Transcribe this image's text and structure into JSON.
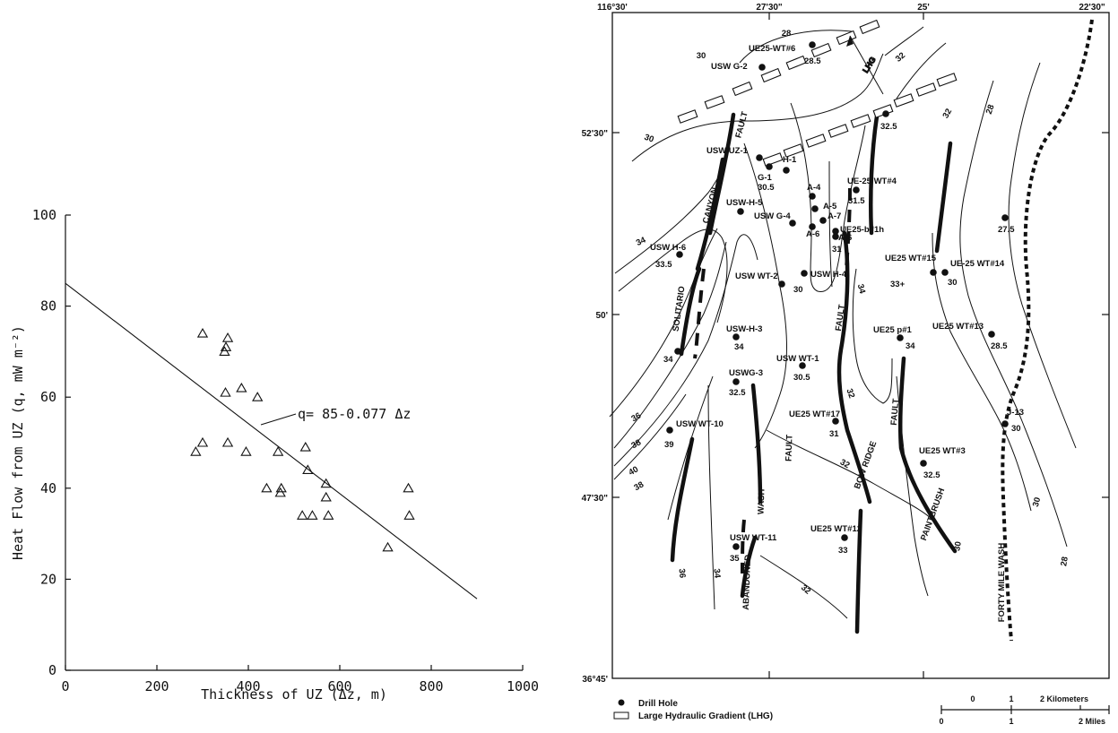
{
  "chart_data": [
    {
      "type": "scatter",
      "xlabel": "Thickness of UZ (Δz, m)",
      "ylabel": "Heat Flow from UZ (q, mW m⁻²)",
      "xlim": [
        0,
        1000
      ],
      "ylim": [
        0,
        100
      ],
      "xticks": [
        0,
        200,
        400,
        600,
        800,
        1000
      ],
      "yticks": [
        0,
        20,
        40,
        60,
        80,
        100
      ],
      "grid": false,
      "marker": "open-triangle",
      "points": [
        [
          300,
          74
        ],
        [
          355,
          73
        ],
        [
          348,
          70
        ],
        [
          351,
          71
        ],
        [
          350,
          61
        ],
        [
          385,
          62
        ],
        [
          420,
          60
        ],
        [
          285,
          48
        ],
        [
          300,
          50
        ],
        [
          355,
          50
        ],
        [
          395,
          48
        ],
        [
          465,
          48
        ],
        [
          440,
          40
        ],
        [
          470,
          39
        ],
        [
          472,
          40
        ],
        [
          525,
          49
        ],
        [
          530,
          44
        ],
        [
          570,
          41
        ],
        [
          570,
          38
        ],
        [
          518,
          34
        ],
        [
          540,
          34
        ],
        [
          575,
          34
        ],
        [
          705,
          27
        ],
        [
          750,
          40
        ],
        [
          752,
          34
        ]
      ],
      "fit": {
        "intercept": 85,
        "slope": -0.077,
        "x_range": [
          0,
          900
        ]
      },
      "annotation": "q= 85-0.077 Δz"
    },
    {
      "type": "map",
      "corner_labels": {
        "top_left": "116°30'",
        "top_mid": "27'30\"",
        "top_right_mid": "25'",
        "top_right": "22'30\"",
        "bottom_left": "36°45'"
      },
      "lat_labels": [
        "52'30\"",
        "50'",
        "47'30\""
      ],
      "legend": [
        {
          "symbol": "drill-hole",
          "label": "Drill Hole"
        },
        {
          "symbol": "lhg-rect",
          "label": "Large Hydraulic Gradient (LHG)"
        }
      ],
      "scale": {
        "km_ticks": [
          "0",
          "1",
          "2 Kilometers"
        ],
        "mi_ticks": [
          "0",
          "1",
          "2 Miles"
        ]
      },
      "features": [
        "FAULT",
        "CANYON",
        "SOLITARIO",
        "WASH",
        "FAULT",
        "ABANDONED",
        "FAULT",
        "BOW RIDGE",
        "FAULT",
        "PAINTBRUSH",
        "FORTY MILE WASH",
        "LHG"
      ],
      "drill_holes": [
        {
          "name": "UE25-WT#6",
          "value": "28.5"
        },
        {
          "name": "USW G-2",
          "value": ""
        },
        {
          "name": "USW UZ-1",
          "value": ""
        },
        {
          "name": "G-1",
          "value": "30.5"
        },
        {
          "name": "H-1",
          "value": ""
        },
        {
          "name": "USW-H-5",
          "value": ""
        },
        {
          "name": "USW G-4",
          "value": ""
        },
        {
          "name": "A-4",
          "value": ""
        },
        {
          "name": "A-5",
          "value": ""
        },
        {
          "name": "A-7",
          "value": ""
        },
        {
          "name": "A-6",
          "value": ""
        },
        {
          "name": "A-6",
          "value": ""
        },
        {
          "name": "UE25-b#1h",
          "value": "31"
        },
        {
          "name": "UE-25 WT#4",
          "value": "31.5"
        },
        {
          "name": "",
          "value": "32.5"
        },
        {
          "name": "USW H-6",
          "value": "33.5"
        },
        {
          "name": "USW WT-2",
          "value": "30"
        },
        {
          "name": "USW H-4",
          "value": ""
        },
        {
          "name": "UE25 WT#15",
          "value": "33+"
        },
        {
          "name": "UE-25 WT#14",
          "value": "30"
        },
        {
          "name": "",
          "value": "27.5"
        },
        {
          "name": "",
          "value": "34"
        },
        {
          "name": "USW-H-3",
          "value": "34"
        },
        {
          "name": "UE25 p#1",
          "value": "34"
        },
        {
          "name": "UE25 WT#13",
          "value": "28.5"
        },
        {
          "name": "USWG-3",
          "value": "32.5"
        },
        {
          "name": "USW WT-1",
          "value": "30.5"
        },
        {
          "name": "USW WT-10",
          "value": "39"
        },
        {
          "name": "UE25 WT#17",
          "value": "31"
        },
        {
          "name": "J-13",
          "value": "30"
        },
        {
          "name": "UE25 WT#3",
          "value": "32.5"
        },
        {
          "name": "USW WT-11",
          "value": "35"
        },
        {
          "name": "UE25 WT#12",
          "value": "33"
        }
      ],
      "contour_labels": [
        "28",
        "30",
        "32",
        "30",
        "32",
        "34",
        "36",
        "38",
        "40",
        "38",
        "36",
        "34",
        "32",
        "34",
        "32",
        "32",
        "30",
        "28",
        "30",
        "28"
      ]
    }
  ]
}
